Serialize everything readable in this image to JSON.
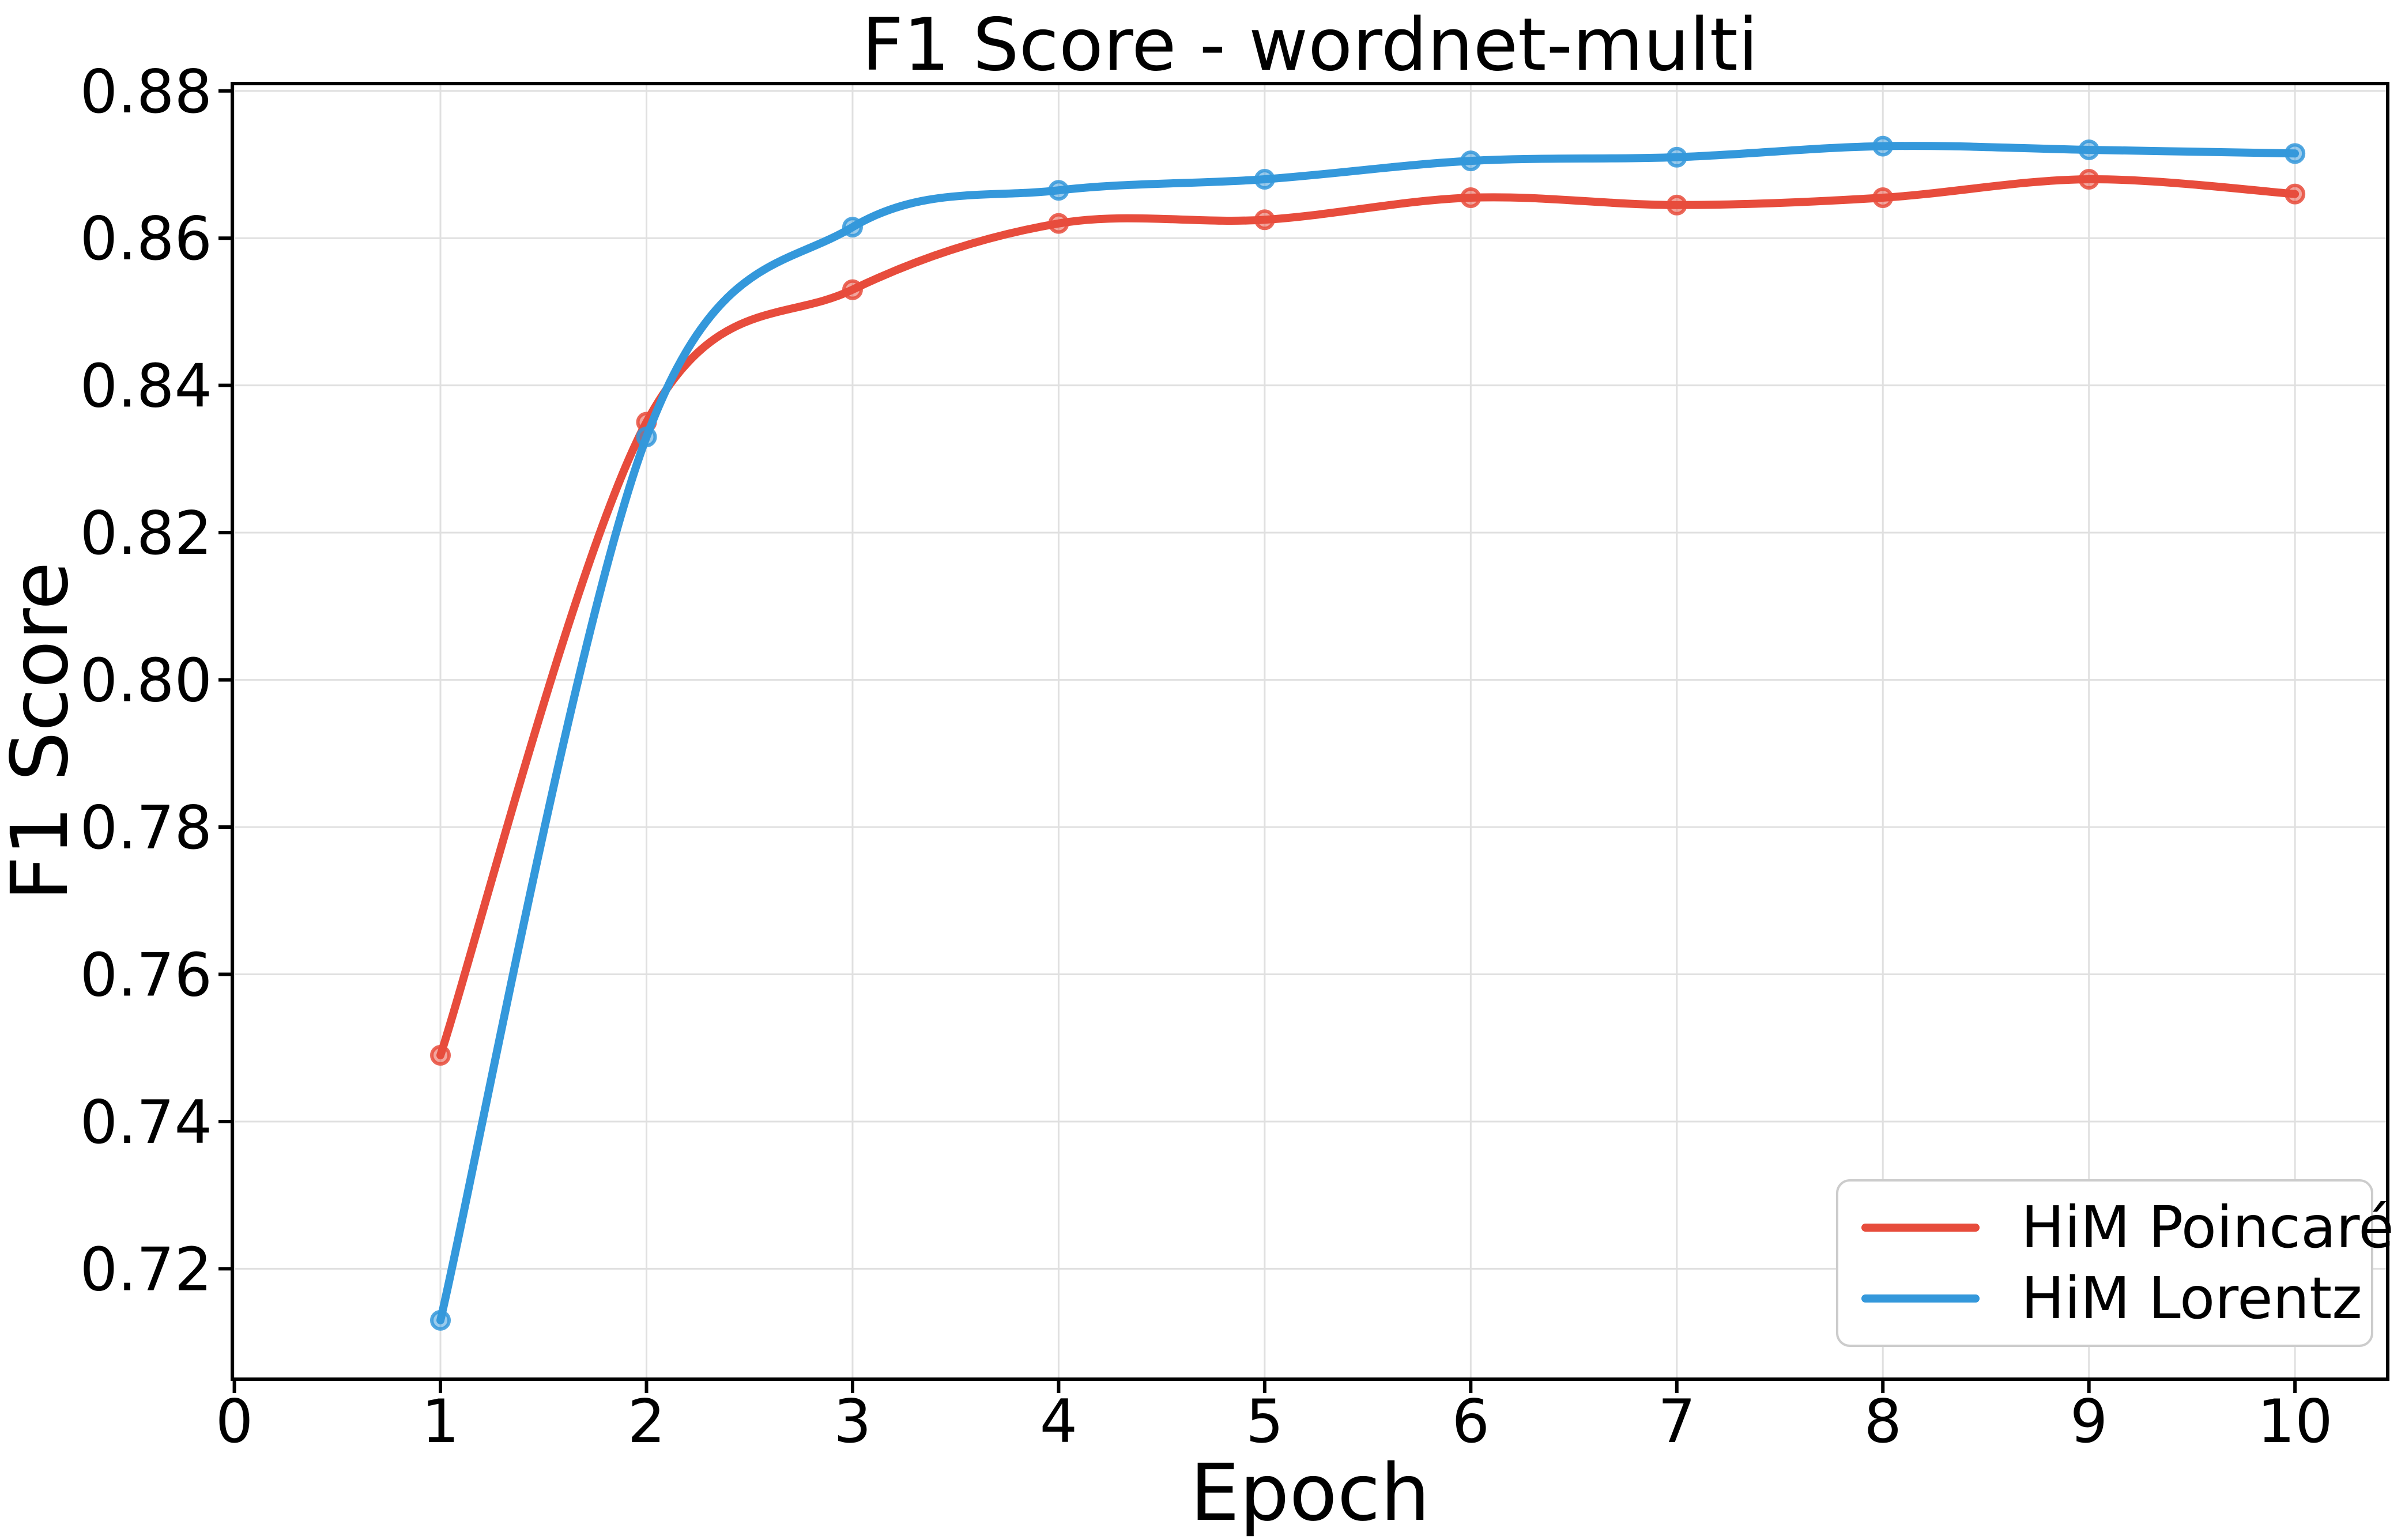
{
  "figure": {
    "background": "#ffffff"
  },
  "chart_data": {
    "type": "line",
    "title": "F1 Score - wordnet-multi",
    "xlabel": "Epoch",
    "ylabel": "F1 Score",
    "x": [
      1,
      2,
      3,
      4,
      5,
      6,
      7,
      8,
      9,
      10
    ],
    "series": [
      {
        "name": "HiM Poincaré",
        "color": "#e74c3c",
        "marker": "circle",
        "values": [
          0.749,
          0.835,
          0.853,
          0.862,
          0.8625,
          0.8655,
          0.8645,
          0.8655,
          0.868,
          0.866
        ]
      },
      {
        "name": "HiM Lorentz",
        "color": "#3498db",
        "marker": "circle",
        "values": [
          0.713,
          0.833,
          0.8615,
          0.8665,
          0.868,
          0.8705,
          0.871,
          0.8725,
          0.872,
          0.8715
        ]
      }
    ],
    "xticks": {
      "values": [
        0,
        1,
        2,
        3,
        4,
        5,
        6,
        7,
        8,
        9,
        10
      ],
      "labels": [
        "0",
        "1",
        "2",
        "3",
        "4",
        "5",
        "6",
        "7",
        "8",
        "9",
        "10"
      ]
    },
    "yticks": {
      "values": [
        0.72,
        0.74,
        0.76,
        0.78,
        0.8,
        0.82,
        0.84,
        0.86,
        0.88
      ],
      "labels": [
        "0.72",
        "0.74",
        "0.76",
        "0.78",
        "0.80",
        "0.82",
        "0.84",
        "0.86",
        "0.88"
      ]
    },
    "xlim": [
      -0.01,
      10.45
    ],
    "ylim": [
      0.705,
      0.881
    ],
    "grid": true,
    "legend": {
      "position": "lower right",
      "entries": [
        "HiM Poincaré",
        "HiM Lorentz"
      ]
    },
    "style": {
      "grid_color": "#e0e0e0",
      "spine_color": "#000000",
      "tick_label_color": "#000000"
    }
  }
}
